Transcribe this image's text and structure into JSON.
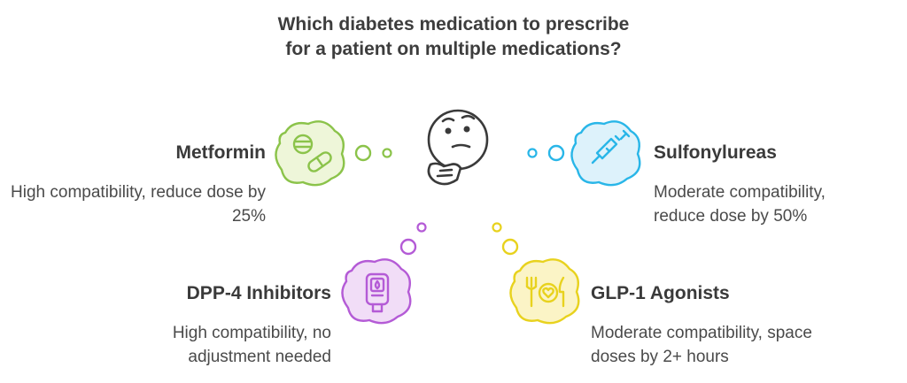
{
  "title": "Which diabetes medication to prescribe for a patient on multiple medications?",
  "options": [
    {
      "label": "Metformin",
      "description": "High compatibility, reduce dose by 25%",
      "color": "#8BC34A",
      "fill": "#EEF6D9",
      "icon": "pill-icon"
    },
    {
      "label": "Sulfonylureas",
      "description": "Moderate compatibility, reduce dose by 50%",
      "color": "#29B6E8",
      "fill": "#DDF2FB",
      "icon": "syringe-icon"
    },
    {
      "label": "DPP-4 Inhibitors",
      "description": "High compatibility, no adjustment needed",
      "color": "#B45BD6",
      "fill": "#F1DDF7",
      "icon": "glucose-meter-icon"
    },
    {
      "label": "GLP-1 Agonists",
      "description": "Moderate compatibility, space doses by 2+ hours",
      "color": "#E8D21E",
      "fill": "#FBF4C6",
      "icon": "healthy-meal-icon"
    }
  ],
  "center_icon": "thinking-face-icon"
}
